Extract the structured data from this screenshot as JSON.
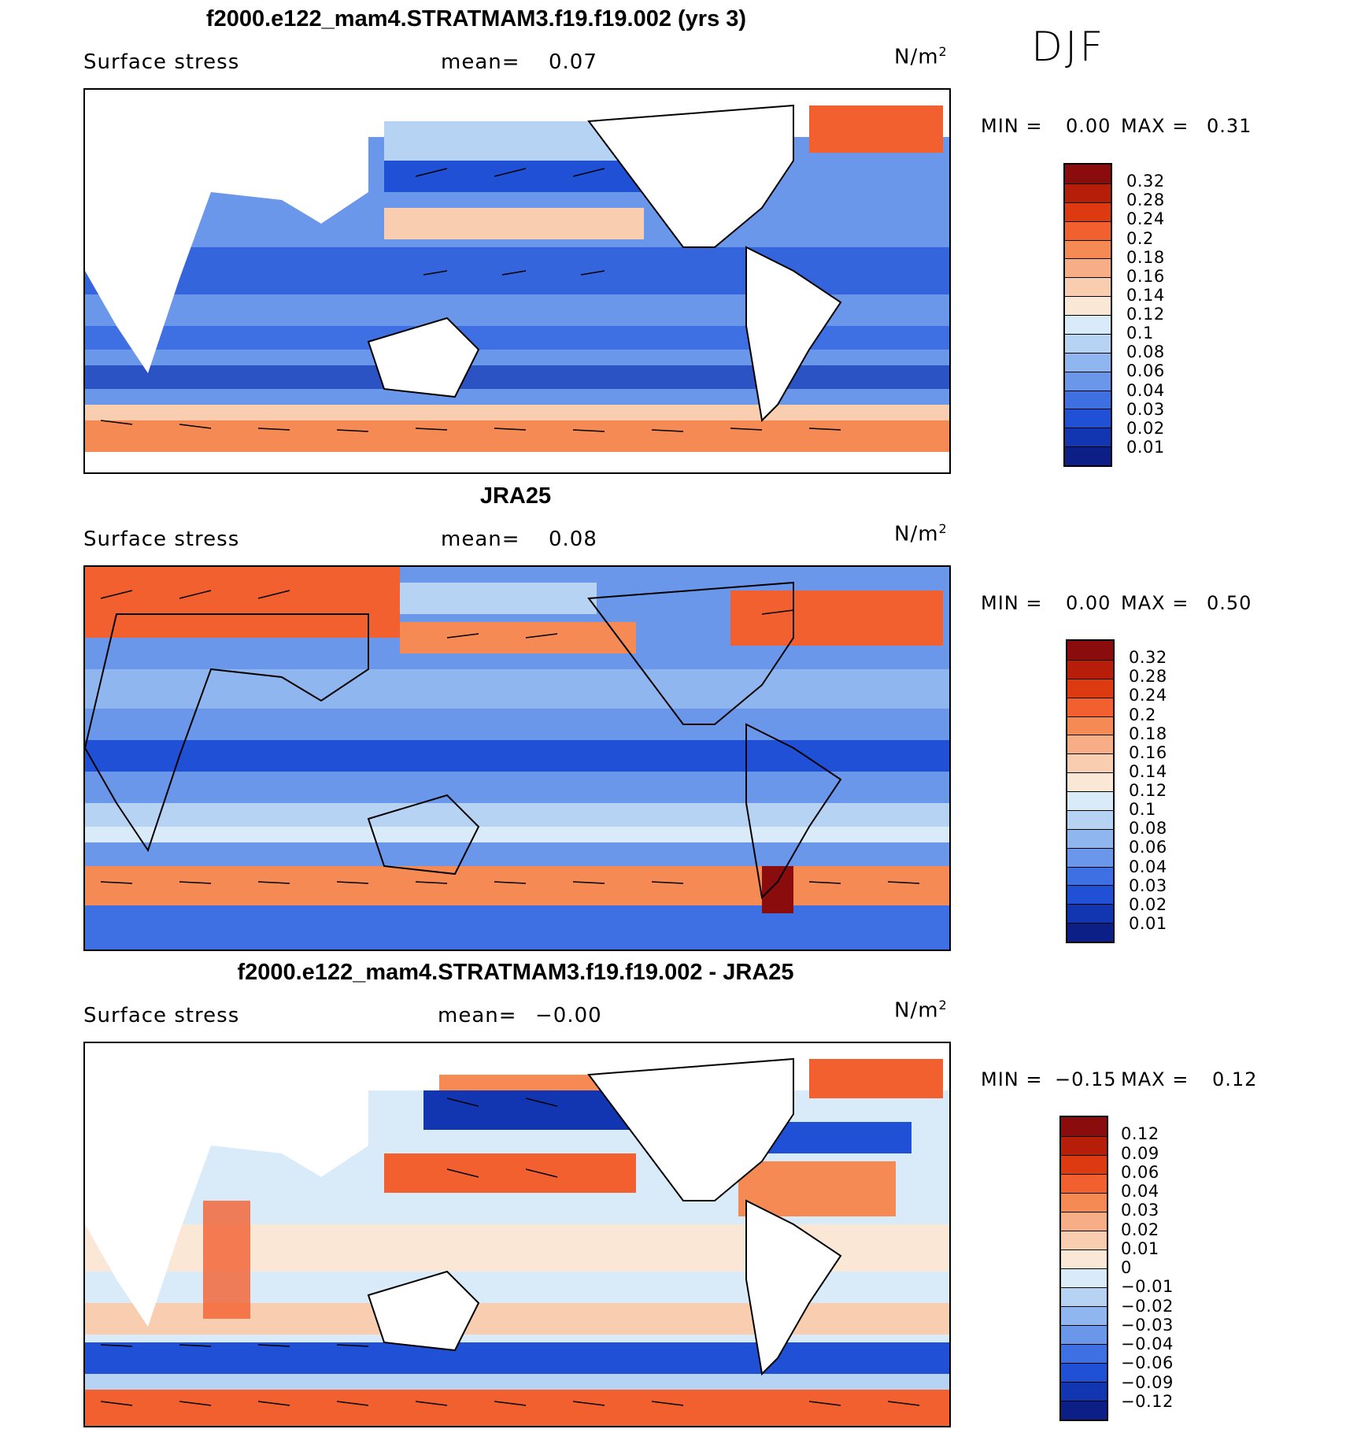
{
  "season": "DJF",
  "panels": [
    {
      "title": "f2000.e122_mam4.STRATMAM3.f19.f19.002 (yrs 3)",
      "variable": "Surface stress",
      "mean_label": "mean=",
      "mean_value": "0.07",
      "units_base": "N/m",
      "units_exp": "2",
      "minmax": {
        "min_label": "MIN =",
        "min": "0.00",
        "max_label": "MAX =",
        "max": "0.31"
      },
      "colorbar": {
        "labels": [
          "0.32",
          "0.28",
          "0.24",
          "0.2",
          "0.18",
          "0.16",
          "0.14",
          "0.12",
          "0.1",
          "0.08",
          "0.06",
          "0.04",
          "0.03",
          "0.02",
          "0.01"
        ],
        "colors": [
          "#8a0c0c",
          "#b61e0a",
          "#de3a12",
          "#f26030",
          "#f58a55",
          "#f7ad86",
          "#f9cdb0",
          "#fbe7d6",
          "#d9eaf8",
          "#b6d3f4",
          "#8fb6ef",
          "#6a97ea",
          "#3f70e3",
          "#2050d6",
          "#1236b2",
          "#0b1f86"
        ]
      }
    },
    {
      "title": "JRA25",
      "variable": "Surface stress",
      "mean_label": "mean=",
      "mean_value": "0.08",
      "units_base": "N/m",
      "units_exp": "2",
      "minmax": {
        "min_label": "MIN =",
        "min": "0.00",
        "max_label": "MAX =",
        "max": "0.50"
      },
      "colorbar": {
        "labels": [
          "0.32",
          "0.28",
          "0.24",
          "0.2",
          "0.18",
          "0.16",
          "0.14",
          "0.12",
          "0.1",
          "0.08",
          "0.06",
          "0.04",
          "0.03",
          "0.02",
          "0.01"
        ],
        "colors": [
          "#8a0c0c",
          "#b61e0a",
          "#de3a12",
          "#f26030",
          "#f58a55",
          "#f7ad86",
          "#f9cdb0",
          "#fbe7d6",
          "#d9eaf8",
          "#b6d3f4",
          "#8fb6ef",
          "#6a97ea",
          "#3f70e3",
          "#2050d6",
          "#1236b2",
          "#0b1f86"
        ]
      }
    },
    {
      "title": "f2000.e122_mam4.STRATMAM3.f19.f19.002 - JRA25",
      "variable": "Surface stress",
      "mean_label": "mean=",
      "mean_value": "−0.00",
      "units_base": "N/m",
      "units_exp": "2",
      "minmax": {
        "min_label": "MIN =",
        "min": "−0.15",
        "max_label": "MAX =",
        "max": "0.12"
      },
      "colorbar": {
        "labels": [
          "0.12",
          "0.09",
          "0.06",
          "0.04",
          "0.03",
          "0.02",
          "0.01",
          "0",
          "−0.01",
          "−0.02",
          "−0.03",
          "−0.04",
          "−0.06",
          "−0.09",
          "−0.12"
        ],
        "colors": [
          "#8a0c0c",
          "#b61e0a",
          "#de3a12",
          "#f26030",
          "#f58a55",
          "#f7ad86",
          "#f9cdb0",
          "#fbe7d6",
          "#d9eaf8",
          "#b6d3f4",
          "#8fb6ef",
          "#6a97ea",
          "#3f70e3",
          "#2050d6",
          "#1236b2",
          "#0b1f86"
        ]
      }
    }
  ]
}
